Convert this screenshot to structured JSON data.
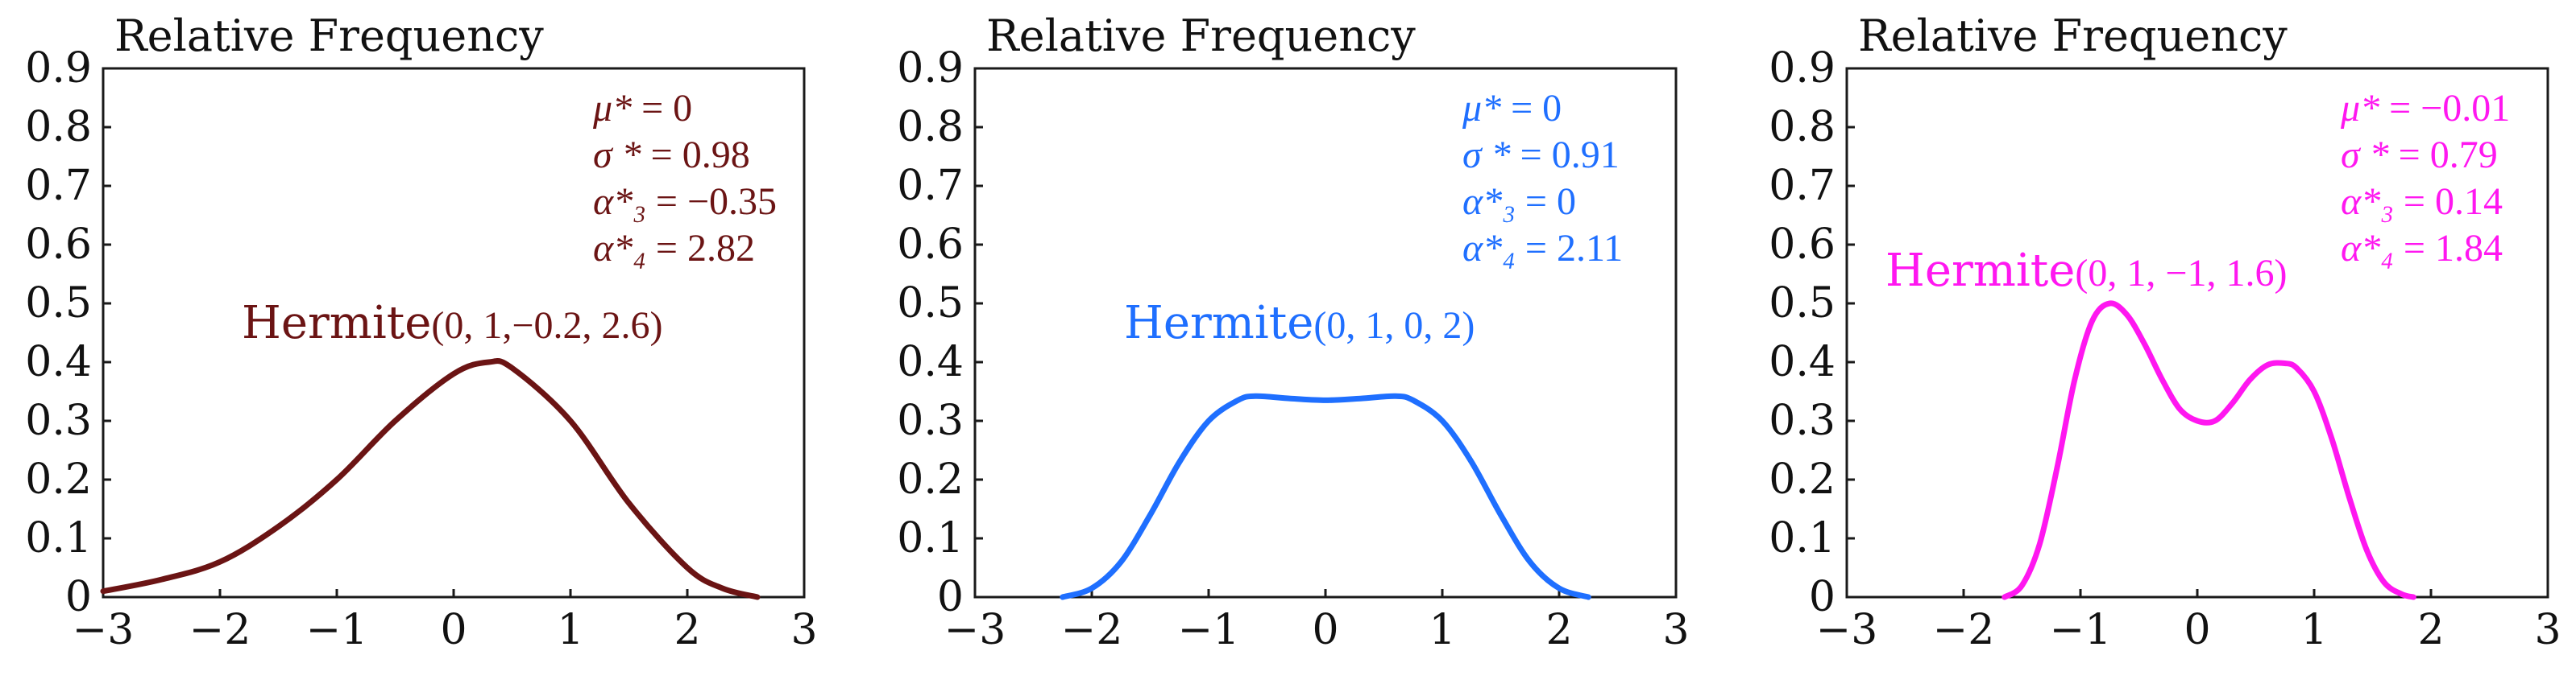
{
  "chart_data": [
    {
      "type": "line",
      "ylabel": "Relative Frequency",
      "xlim": [
        -3,
        3
      ],
      "ylim": [
        0,
        0.9
      ],
      "xticks": [
        -3,
        -2,
        -1,
        0,
        1,
        2,
        3
      ],
      "yticks": [
        0,
        0.1,
        0.2,
        0.3,
        0.4,
        0.5,
        0.6,
        0.7,
        0.8,
        0.9
      ],
      "xtick_labels": [
        "−3",
        "−2",
        "−1",
        "0",
        "1",
        "2",
        "3"
      ],
      "ytick_labels": [
        "0",
        "0.1",
        "0.2",
        "0.3",
        "0.4",
        "0.5",
        "0.6",
        "0.7",
        "0.8",
        "0.9"
      ],
      "color": "#6b1414",
      "label_name": "Hermite",
      "label_params": "(0, 1,−0.2, 2.6)",
      "stats": [
        {
          "sym": "μ*",
          "val": " = 0"
        },
        {
          "sym": "σ *",
          "val": " = 0.98"
        },
        {
          "sym": "α*₃",
          "val": " = −0.35"
        },
        {
          "sym": "α*₄",
          "val": " = 2.82"
        }
      ],
      "series": [
        {
          "name": "Hermite(0, 1, -0.2, 2.6)",
          "x": [
            -3,
            -2.5,
            -2,
            -1.5,
            -1,
            -0.5,
            0,
            0.3,
            0.5,
            1,
            1.5,
            2,
            2.3,
            2.6
          ],
          "y": [
            0.01,
            0.03,
            0.06,
            0.12,
            0.2,
            0.3,
            0.38,
            0.4,
            0.39,
            0.3,
            0.16,
            0.05,
            0.015,
            0
          ]
        }
      ]
    },
    {
      "type": "line",
      "ylabel": "Relative Frequency",
      "xlim": [
        -3,
        3
      ],
      "ylim": [
        0,
        0.9
      ],
      "xticks": [
        -3,
        -2,
        -1,
        0,
        1,
        2,
        3
      ],
      "yticks": [
        0,
        0.1,
        0.2,
        0.3,
        0.4,
        0.5,
        0.6,
        0.7,
        0.8,
        0.9
      ],
      "xtick_labels": [
        "−3",
        "−2",
        "−1",
        "0",
        "1",
        "2",
        "3"
      ],
      "ytick_labels": [
        "0",
        "0.1",
        "0.2",
        "0.3",
        "0.4",
        "0.5",
        "0.6",
        "0.7",
        "0.8",
        "0.9"
      ],
      "color": "#1f6fff",
      "label_name": "Hermite",
      "label_params": "(0, 1, 0, 2)",
      "stats": [
        {
          "sym": "μ*",
          "val": " = 0"
        },
        {
          "sym": "σ *",
          "val": " = 0.91"
        },
        {
          "sym": "α*₃",
          "val": " =  0"
        },
        {
          "sym": "α*₄",
          "val": " = 2.11"
        }
      ],
      "series": [
        {
          "name": "Hermite(0, 1, 0, 2)",
          "x": [
            -2.25,
            -2,
            -1.75,
            -1.5,
            -1.25,
            -1,
            -0.75,
            -0.6,
            -0.3,
            0,
            0.3,
            0.6,
            0.75,
            1,
            1.25,
            1.5,
            1.75,
            2,
            2.25
          ],
          "y": [
            0,
            0.015,
            0.06,
            0.14,
            0.23,
            0.3,
            0.335,
            0.342,
            0.338,
            0.335,
            0.338,
            0.342,
            0.335,
            0.3,
            0.23,
            0.14,
            0.06,
            0.015,
            0
          ]
        }
      ]
    },
    {
      "type": "line",
      "ylabel": "Relative Frequency",
      "xlim": [
        -3,
        3
      ],
      "ylim": [
        0,
        0.9
      ],
      "xticks": [
        -3,
        -2,
        -1,
        0,
        1,
        2,
        3
      ],
      "yticks": [
        0,
        0.1,
        0.2,
        0.3,
        0.4,
        0.5,
        0.6,
        0.7,
        0.8,
        0.9
      ],
      "xtick_labels": [
        "−3",
        "−2",
        "−1",
        "0",
        "1",
        "2",
        "3"
      ],
      "ytick_labels": [
        "0",
        "0.1",
        "0.2",
        "0.3",
        "0.4",
        "0.5",
        "0.6",
        "0.7",
        "0.8",
        "0.9"
      ],
      "color": "#ff17f0",
      "label_name": "Hermite",
      "label_params": "(0, 1, −1, 1.6)",
      "stats": [
        {
          "sym": "μ*",
          "val": " = −0.01"
        },
        {
          "sym": "σ *",
          "val": " = 0.79"
        },
        {
          "sym": "α*₃",
          "val": " =  0.14"
        },
        {
          "sym": "α*₄",
          "val": " = 1.84"
        }
      ],
      "series": [
        {
          "name": "Hermite(0, 1, -1, 1.6)",
          "x": [
            -1.65,
            -1.5,
            -1.35,
            -1.2,
            -1.05,
            -0.9,
            -0.75,
            -0.6,
            -0.45,
            -0.3,
            -0.15,
            0,
            0.15,
            0.3,
            0.45,
            0.6,
            0.75,
            0.85,
            1.0,
            1.15,
            1.3,
            1.45,
            1.6,
            1.75,
            1.85
          ],
          "y": [
            0,
            0.02,
            0.09,
            0.22,
            0.37,
            0.47,
            0.5,
            0.48,
            0.43,
            0.37,
            0.32,
            0.3,
            0.3,
            0.33,
            0.37,
            0.395,
            0.398,
            0.39,
            0.35,
            0.27,
            0.17,
            0.08,
            0.025,
            0.005,
            0
          ]
        }
      ]
    }
  ]
}
